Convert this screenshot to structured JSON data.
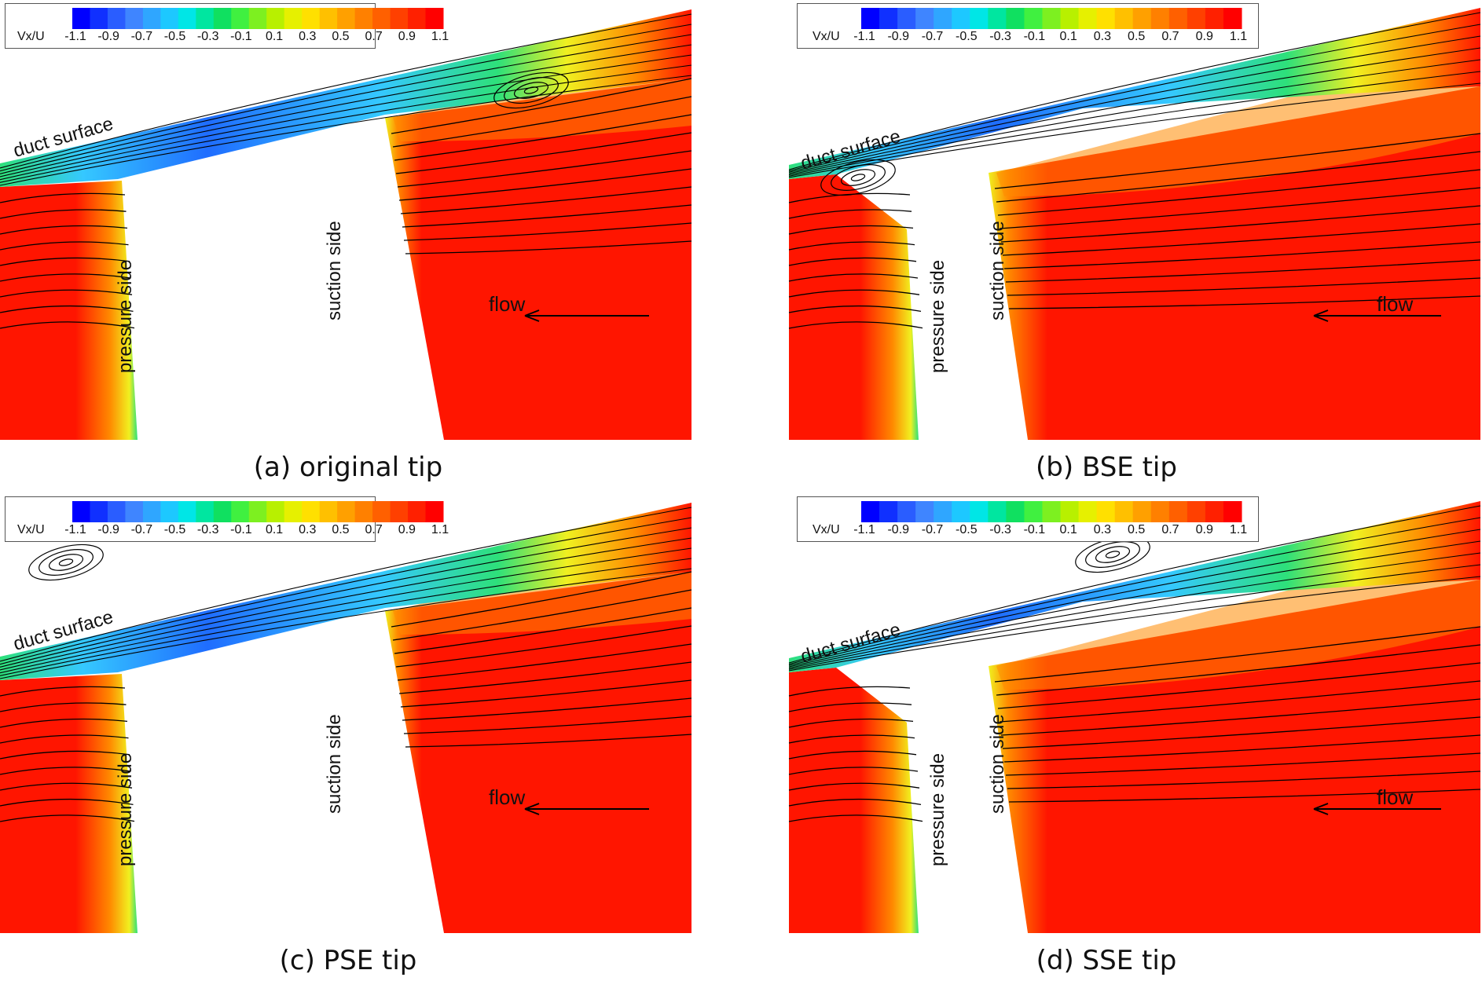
{
  "colorbar": {
    "label": "Vx/U",
    "ticks": [
      "-1.1",
      "-0.9",
      "-0.7",
      "-0.5",
      "-0.3",
      "-0.1",
      "0.1",
      "0.3",
      "0.5",
      "0.7",
      "0.9",
      "1.1"
    ],
    "colors": [
      "#0000ff",
      "#1030ff",
      "#2a5dff",
      "#3f85ff",
      "#2fa6ff",
      "#1dc8ff",
      "#00e6e6",
      "#00e6a0",
      "#10e060",
      "#40f040",
      "#7df020",
      "#b8f000",
      "#e6f000",
      "#ffe000",
      "#ffc000",
      "#ffa000",
      "#ff8000",
      "#ff6000",
      "#ff4000",
      "#ff2000",
      "#ff0000"
    ]
  },
  "labels": {
    "duct_surface": "duct surface",
    "pressure_side": "pressure side",
    "suction_side": "suction side",
    "flow": "flow"
  },
  "panels": [
    {
      "caption": "(a) original tip",
      "variant": "original",
      "vortex": "suction"
    },
    {
      "caption": "(b) BSE tip",
      "variant": "bse",
      "vortex": "pressure"
    },
    {
      "caption": "(c) PSE tip",
      "variant": "pse",
      "vortex": "pressure"
    },
    {
      "caption": "(d) SSE tip",
      "variant": "sse",
      "vortex": "suction"
    }
  ],
  "colors": {
    "blue": "#1f6dff",
    "cyan": "#35c8ff",
    "green": "#2ee07a",
    "yellow": "#f0f020",
    "orange": "#ff8a00",
    "red": "#ff1500",
    "streamline": "#000000"
  }
}
